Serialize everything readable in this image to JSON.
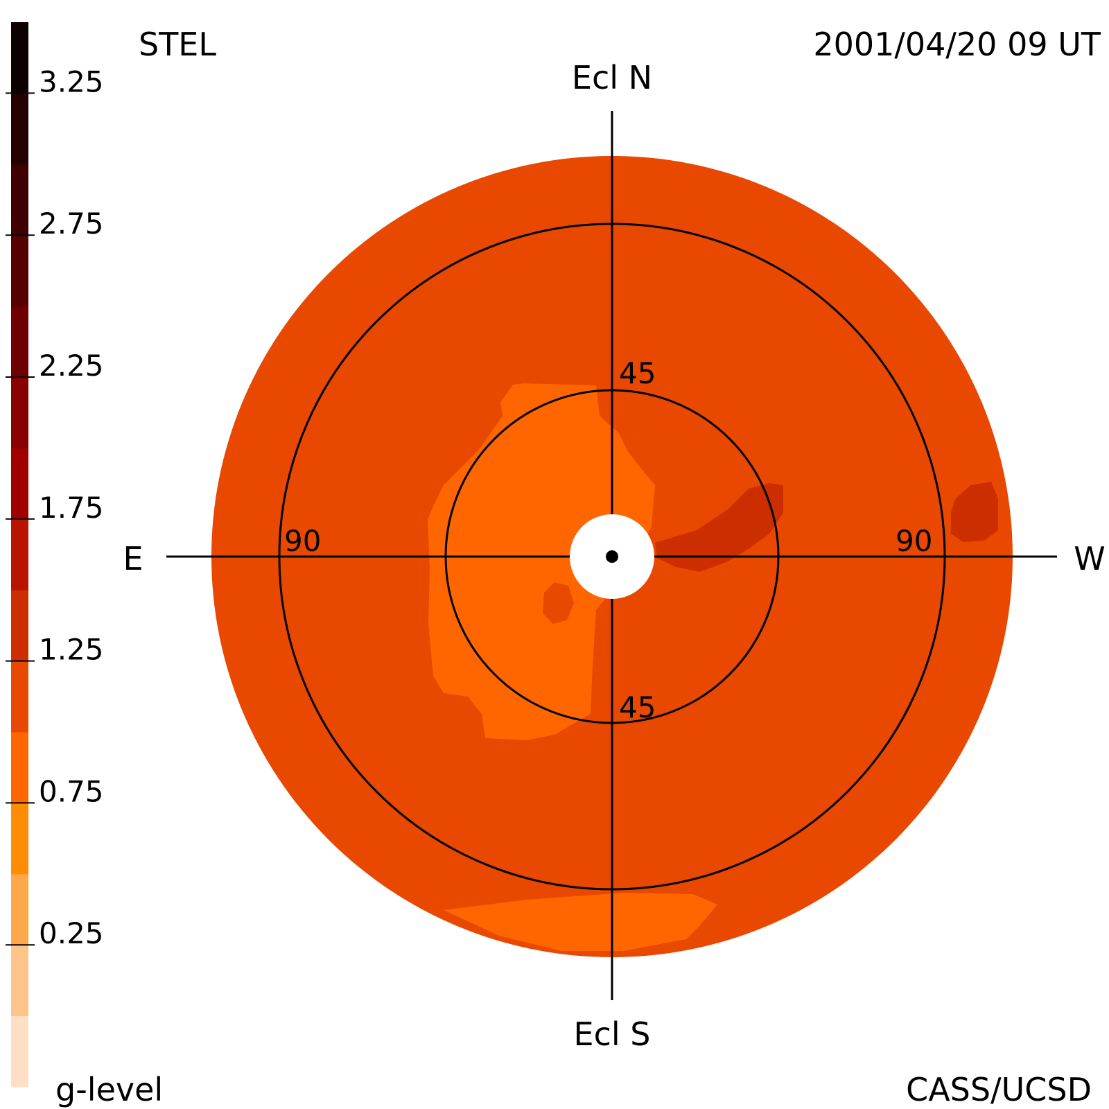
{
  "header": {
    "instrument": "STEL",
    "timestamp": "2001/04/20 09 UT"
  },
  "footer": {
    "credit": "CASS/UCSD"
  },
  "colorbar": {
    "label": "g-level",
    "tick_labels": [
      "3.25",
      "2.75",
      "2.25",
      "1.75",
      "1.25",
      "0.75",
      "0.25"
    ],
    "tick_values": [
      3.25,
      2.75,
      2.25,
      1.75,
      1.25,
      0.75,
      0.25
    ],
    "range": [
      -0.25,
      3.5
    ],
    "bands": [
      {
        "from": -0.25,
        "to": 0.0,
        "color": "#ffe0c4"
      },
      {
        "from": 0.0,
        "to": 0.25,
        "color": "#ffc489"
      },
      {
        "from": 0.25,
        "to": 0.5,
        "color": "#ffa84b"
      },
      {
        "from": 0.5,
        "to": 0.75,
        "color": "#ff8c05"
      },
      {
        "from": 0.75,
        "to": 1.0,
        "color": "#ff6600"
      },
      {
        "from": 1.0,
        "to": 1.25,
        "color": "#e84800"
      },
      {
        "from": 1.25,
        "to": 1.5,
        "color": "#cc2e00"
      },
      {
        "from": 1.5,
        "to": 1.75,
        "color": "#b81500"
      },
      {
        "from": 1.75,
        "to": 2.0,
        "color": "#a00000"
      },
      {
        "from": 2.0,
        "to": 2.25,
        "color": "#880000"
      },
      {
        "from": 2.25,
        "to": 2.5,
        "color": "#6e0000"
      },
      {
        "from": 2.5,
        "to": 2.75,
        "color": "#560000"
      },
      {
        "from": 2.75,
        "to": 3.0,
        "color": "#3e0000"
      },
      {
        "from": 3.0,
        "to": 3.25,
        "color": "#260000"
      },
      {
        "from": 3.25,
        "to": 3.5,
        "color": "#0e0000"
      }
    ]
  },
  "chart_data": {
    "type": "heatmap",
    "projection": "polar sky map centred on the Sun",
    "direction_labels": {
      "north": "Ecl N",
      "south": "Ecl S",
      "east": "E",
      "west": "W"
    },
    "elongation_circles": [
      {
        "value": 45,
        "labels": [
          "45",
          "45"
        ]
      },
      {
        "value": 90,
        "labels": [
          "90",
          "90"
        ]
      }
    ],
    "background_level": 1.1,
    "background_color": "#e84800",
    "regions": [
      {
        "name": "enhanced-region-east-inner",
        "level": 0.85,
        "color": "#ff6600"
      },
      {
        "name": "enhanced-region-south-edge",
        "level": 0.85,
        "color": "#ff6600"
      },
      {
        "name": "enhanced-region-west-inner",
        "level": 1.35,
        "color": "#cc2e00"
      },
      {
        "name": "enhanced-region-west-outer",
        "level": 1.35,
        "color": "#cc2e00"
      },
      {
        "name": "small-patch-near-center",
        "level": 1.1,
        "color": "#e84800"
      }
    ],
    "grid": true
  }
}
